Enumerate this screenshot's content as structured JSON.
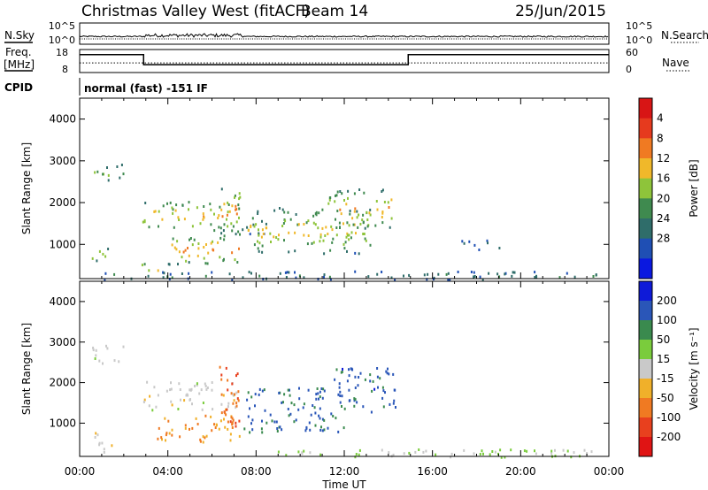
{
  "header": {
    "station": "Christmas Valley West (fitACF)",
    "beam": "Beam 14",
    "date": "25/Jun/2015"
  },
  "noise_panel": {
    "left_label": "N.Sky",
    "right_label": "N.Search",
    "left_ticks": [
      "10^5",
      "10^0"
    ],
    "right_ticks": [
      "10^5",
      "10^0"
    ]
  },
  "freq_panel": {
    "left_label_1": "Freq.",
    "left_label_2": "[MHz]",
    "right_label": "Nave",
    "left_ticks": [
      "18",
      "8"
    ],
    "right_ticks": [
      "60",
      "0"
    ],
    "freq_steps": [
      {
        "t": 0,
        "mhz": 15.8
      },
      {
        "t": 2.9,
        "mhz": 11.4
      },
      {
        "t": 14.9,
        "mhz": 15.8
      },
      {
        "t": 24,
        "mhz": 15.8
      }
    ],
    "dotted_mhz": 12.2
  },
  "cpid": {
    "label": "CPID",
    "text": "normal (fast) -151 IF"
  },
  "chart_data": [
    {
      "type": "heatmap",
      "title": "Power",
      "xlabel": "Time UT",
      "ylabel": "Slant Range [km]",
      "xlim": [
        0,
        24
      ],
      "ylim": [
        180,
        4500
      ],
      "x_ticks": [
        "00:00",
        "04:00",
        "08:00",
        "12:00",
        "16:00",
        "20:00",
        "00:00"
      ],
      "y_ticks": [
        "1000",
        "2000",
        "3000",
        "4000"
      ],
      "colorbar": {
        "label": "Power [dB]",
        "range": [
          0,
          32
        ],
        "tick_labels": [
          "4",
          "8",
          "12",
          "16",
          "20",
          "24",
          "28"
        ],
        "colors": [
          "#0a18e0",
          "#1f4fb4",
          "#2f6d6a",
          "#3f8a4f",
          "#8ec43a",
          "#f0b82a",
          "#f07a22",
          "#e63a1e",
          "#d81515"
        ]
      },
      "echo_regions": [
        {
          "t0": 0.5,
          "t1": 1.3,
          "r0": 600,
          "r1": 1000,
          "center": 18
        },
        {
          "t0": 0.6,
          "t1": 2.0,
          "r0": 2500,
          "r1": 2950,
          "center": 14
        },
        {
          "t0": 2.8,
          "t1": 3.6,
          "r0": 350,
          "r1": 600,
          "center": 24
        },
        {
          "t0": 2.8,
          "t1": 7.2,
          "r0": 1350,
          "r1": 2050,
          "center": 22
        },
        {
          "t0": 6.3,
          "t1": 7.3,
          "r0": 1200,
          "r1": 2450,
          "center": 22
        },
        {
          "t0": 4.0,
          "t1": 7.4,
          "r0": 550,
          "r1": 1250,
          "center": 24
        },
        {
          "t0": 7.3,
          "t1": 8.5,
          "r0": 1200,
          "r1": 1600,
          "center": 10
        },
        {
          "t0": 7.6,
          "t1": 13.3,
          "r0": 800,
          "r1": 1900,
          "center": 20
        },
        {
          "t0": 11.2,
          "t1": 14.2,
          "r0": 1400,
          "r1": 2350,
          "center": 22
        },
        {
          "t0": 17.2,
          "t1": 19.0,
          "r0": 900,
          "r1": 1150,
          "center": 8
        },
        {
          "t0": 1.0,
          "t1": 23.5,
          "r0": 180,
          "r1": 380,
          "center": 10
        }
      ]
    },
    {
      "type": "heatmap",
      "title": "Velocity",
      "xlabel": "Time UT",
      "ylabel": "Slant Range [km]",
      "xlim": [
        0,
        24
      ],
      "ylim": [
        180,
        4500
      ],
      "x_ticks": [
        "00:00",
        "04:00",
        "08:00",
        "12:00",
        "16:00",
        "20:00",
        "00:00"
      ],
      "y_ticks": [
        "1000",
        "2000",
        "3000",
        "4000"
      ],
      "colorbar": {
        "label": "Velocity [m s⁻¹]",
        "range": [
          -250,
          250
        ],
        "tick_labels": [
          "200",
          "100",
          "50",
          "15",
          "-15",
          "-50",
          "-100",
          "-200"
        ],
        "colors": [
          "#0e1ad8",
          "#2a56b8",
          "#3a8a4e",
          "#7acc3c",
          "#c9c9c9",
          "#f0b02a",
          "#f07a22",
          "#e8401e",
          "#e01414"
        ]
      },
      "echo_regions": [
        {
          "t0": 0.5,
          "t1": 2.0,
          "r0": 2500,
          "r1": 2950,
          "v": 0
        },
        {
          "t0": 2.8,
          "t1": 7.2,
          "r0": 1350,
          "r1": 2050,
          "v": 0
        },
        {
          "t0": 3.5,
          "t1": 7.3,
          "r0": 550,
          "r1": 1250,
          "v": -90
        },
        {
          "t0": 6.3,
          "t1": 7.3,
          "r0": 900,
          "r1": 2450,
          "v": -150
        },
        {
          "t0": 7.4,
          "t1": 12.0,
          "r0": 800,
          "r1": 1900,
          "v": 160
        },
        {
          "t0": 11.5,
          "t1": 14.3,
          "r0": 1300,
          "r1": 2400,
          "v": 180
        },
        {
          "t0": 8.5,
          "t1": 23.5,
          "r0": 180,
          "r1": 380,
          "v": 40
        },
        {
          "t0": 0.5,
          "t1": 1.5,
          "r0": 300,
          "r1": 800,
          "v": 0
        }
      ]
    }
  ]
}
